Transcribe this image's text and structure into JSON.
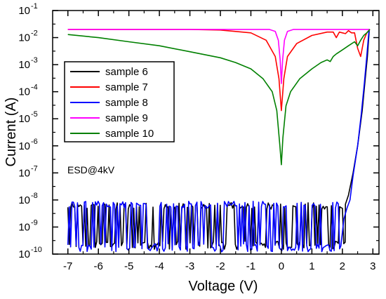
{
  "chart_data": {
    "type": "line",
    "title": "",
    "xlabel": "Voltage (V)",
    "ylabel": "Current (A)",
    "xlim": [
      -7.5,
      3.2
    ],
    "ylim": [
      1e-10,
      0.1
    ],
    "yscale": "log",
    "x_ticks": [
      -7,
      -6,
      -5,
      -4,
      -3,
      -2,
      -1,
      0,
      1,
      2,
      3
    ],
    "x_tick_labels": [
      "-7",
      "-6",
      "-5",
      "-4",
      "-3",
      "-2",
      "-1",
      "0",
      "1",
      "2",
      "3"
    ],
    "y_ticks": [
      1e-10,
      1e-09,
      1e-08,
      1e-07,
      1e-06,
      1e-05,
      0.0001,
      0.001,
      0.01,
      0.1
    ],
    "y_tick_labels": [
      {
        "base": "10",
        "exp": "-10"
      },
      {
        "base": "10",
        "exp": "-9"
      },
      {
        "base": "10",
        "exp": "-8"
      },
      {
        "base": "10",
        "exp": "-7"
      },
      {
        "base": "10",
        "exp": "-6"
      },
      {
        "base": "10",
        "exp": "-5"
      },
      {
        "base": "10",
        "exp": "-4"
      },
      {
        "base": "10",
        "exp": "-3"
      },
      {
        "base": "10",
        "exp": "-2"
      },
      {
        "base": "10",
        "exp": "-1"
      }
    ],
    "grid": false,
    "legend_position": "upper-left",
    "annotation": "ESD@4kV",
    "series": [
      {
        "name": "sample 6",
        "color": "#000000",
        "noise": {
          "x_range": [
            -7,
            2.1
          ],
          "y_low": 1.5e-10,
          "y_high": 8e-09
        },
        "points": [
          [
            2.1,
            7e-09
          ],
          [
            2.2,
            1.5e-08
          ],
          [
            2.35,
            1e-07
          ],
          [
            2.5,
            1e-06
          ],
          [
            2.65,
            2e-05
          ],
          [
            2.75,
            0.0003
          ],
          [
            2.82,
            0.002
          ],
          [
            2.88,
            0.018
          ]
        ]
      },
      {
        "name": "sample 7",
        "color": "#ff0000",
        "points": [
          [
            -7,
            0.02
          ],
          [
            -3,
            0.02
          ],
          [
            -2,
            0.019
          ],
          [
            -1,
            0.015
          ],
          [
            -0.5,
            0.008
          ],
          [
            -0.2,
            0.002
          ],
          [
            -0.08,
            0.0003
          ],
          [
            0,
            2e-05
          ],
          [
            0.08,
            0.0003
          ],
          [
            0.2,
            0.002
          ],
          [
            0.5,
            0.006
          ],
          [
            1.0,
            0.012
          ],
          [
            1.5,
            0.016
          ],
          [
            1.7,
            0.016
          ],
          [
            1.8,
            0.01
          ],
          [
            1.9,
            0.016
          ],
          [
            2.0,
            0.015
          ],
          [
            2.1,
            0.014
          ],
          [
            2.2,
            0.018
          ],
          [
            2.3,
            0.015
          ],
          [
            2.4,
            0.015
          ],
          [
            2.5,
            0.004
          ],
          [
            2.6,
            0.002
          ],
          [
            2.7,
            0.008
          ],
          [
            2.8,
            0.015
          ],
          [
            2.9,
            0.02
          ]
        ]
      },
      {
        "name": "sample 8",
        "color": "#0000ff",
        "noise": {
          "x_range": [
            -7,
            1.95
          ],
          "y_low": 1.2e-10,
          "y_high": 9e-09
        },
        "points": [
          [
            1.95,
            2e-10
          ],
          [
            2.05,
            2e-09
          ],
          [
            2.15,
            5e-09
          ],
          [
            2.25,
            1e-08
          ],
          [
            2.35,
            8e-08
          ],
          [
            2.5,
            1e-06
          ],
          [
            2.62,
            1.5e-05
          ],
          [
            2.72,
            0.0002
          ],
          [
            2.8,
            0.002
          ],
          [
            2.87,
            0.018
          ]
        ]
      },
      {
        "name": "sample 9",
        "color": "#ff00ff",
        "points": [
          [
            -7,
            0.02
          ],
          [
            -0.4,
            0.02
          ],
          [
            -0.2,
            0.017
          ],
          [
            -0.1,
            0.008
          ],
          [
            -0.04,
            0.0015
          ],
          [
            0,
            0.0002
          ],
          [
            0.04,
            0.0015
          ],
          [
            0.1,
            0.008
          ],
          [
            0.2,
            0.017
          ],
          [
            0.4,
            0.02
          ],
          [
            2.9,
            0.02
          ]
        ]
      },
      {
        "name": "sample 10",
        "color": "#008000",
        "points": [
          [
            -7,
            0.013
          ],
          [
            -6,
            0.01
          ],
          [
            -5,
            0.007
          ],
          [
            -4,
            0.005
          ],
          [
            -3,
            0.003
          ],
          [
            -2,
            0.0018
          ],
          [
            -1.5,
            0.0012
          ],
          [
            -1,
            0.0007
          ],
          [
            -0.6,
            0.0003
          ],
          [
            -0.3,
            0.0001
          ],
          [
            -0.15,
            2e-05
          ],
          [
            -0.05,
            1e-06
          ],
          [
            0,
            2e-07
          ],
          [
            0.05,
            2e-06
          ],
          [
            0.15,
            3e-05
          ],
          [
            0.3,
            0.0001
          ],
          [
            0.6,
            0.0003
          ],
          [
            1.0,
            0.0007
          ],
          [
            1.3,
            0.0012
          ],
          [
            1.5,
            0.0015
          ],
          [
            1.6,
            0.0013
          ],
          [
            1.7,
            0.002
          ],
          [
            1.8,
            0.0025
          ],
          [
            2.0,
            0.0035
          ],
          [
            2.2,
            0.005
          ],
          [
            2.4,
            0.007
          ],
          [
            2.5,
            0.005
          ],
          [
            2.6,
            0.008
          ],
          [
            2.7,
            0.012
          ],
          [
            2.8,
            0.015
          ],
          [
            2.9,
            0.02
          ]
        ]
      }
    ]
  }
}
